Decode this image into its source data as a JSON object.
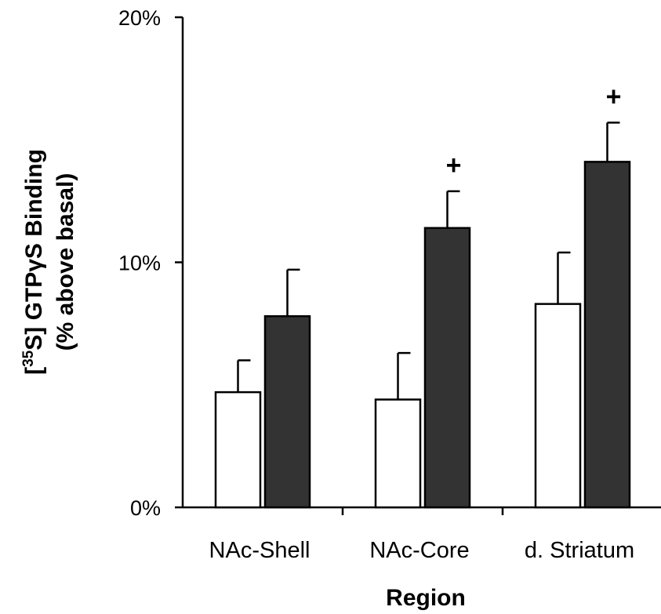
{
  "chart_data": {
    "type": "bar",
    "categories": [
      "NAc-Shell",
      "NAc-Core",
      "d. Striatum"
    ],
    "series": [
      {
        "values": [
          4.7,
          4.4,
          8.3
        ],
        "errors": [
          1.3,
          1.9,
          2.1
        ],
        "color": "#ffffff"
      },
      {
        "values": [
          7.8,
          11.4,
          14.1
        ],
        "errors": [
          1.9,
          1.5,
          1.6
        ],
        "color": "#333333"
      }
    ],
    "significance": [
      {
        "series": 1,
        "category": 1,
        "mark": "+"
      },
      {
        "series": 1,
        "category": 2,
        "mark": "+"
      }
    ],
    "ylim": [
      0,
      20
    ],
    "yticks": [
      {
        "value": 0,
        "label": "0%"
      },
      {
        "value": 10,
        "label": "10%"
      },
      {
        "value": 20,
        "label": "20%"
      }
    ],
    "ylabel_line1_prefix": "[",
    "ylabel_line1_sup": "35",
    "ylabel_line1_rest": "S] GTPγS Binding",
    "ylabel_line2": "(% above basal)",
    "xlabel": "Region",
    "grid": false,
    "legend": "none"
  }
}
